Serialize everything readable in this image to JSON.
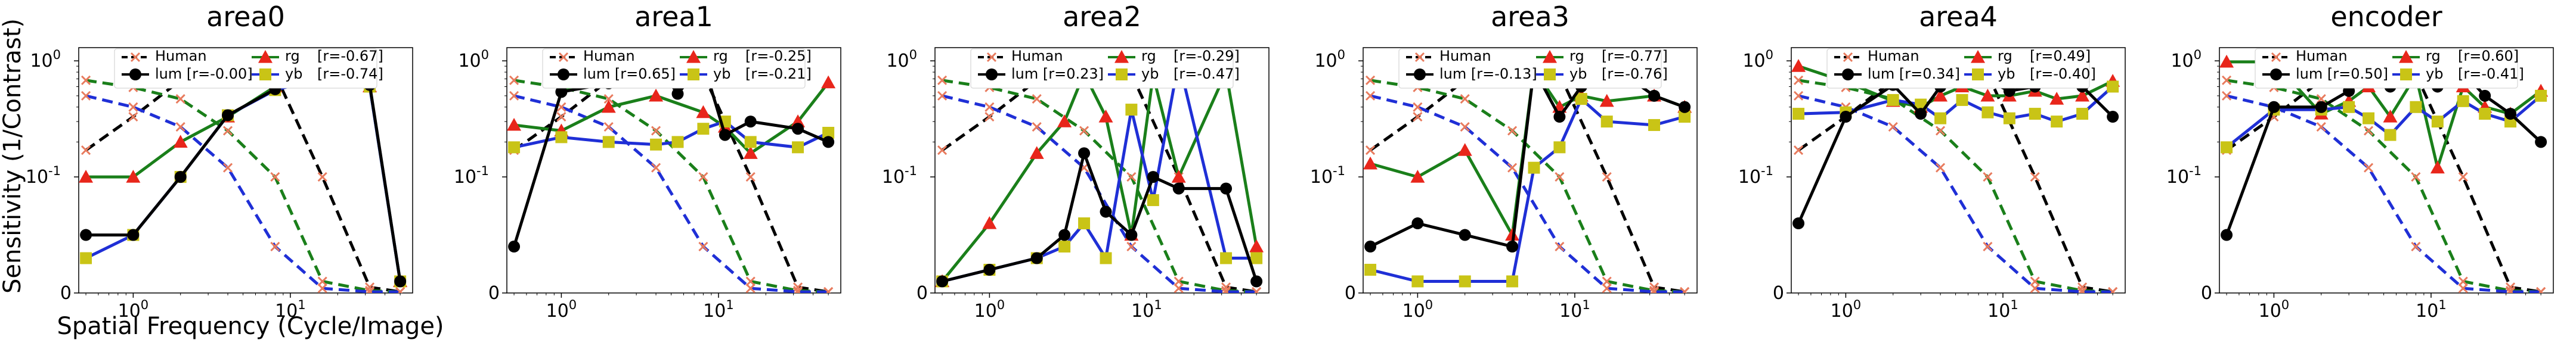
{
  "figure": {
    "ylabel": "Sensitivity (1/Contrast)",
    "xlabel": "Spatial Frequency (Cycle/Image)",
    "legend_labels": {
      "human": "Human",
      "lum": "lum",
      "rg": "rg",
      "yb": "yb"
    }
  },
  "colors": {
    "human": "#000000",
    "lum": "#000000",
    "rg": "#1a7f1a",
    "yb": "#1f2fd6",
    "rg_marker": "#e8261b",
    "yb_marker": "#c9c416",
    "human_rg": "#1a7f1a",
    "human_yb": "#1f2fd6",
    "human_cross": "#e87b5e"
  },
  "chart_data": [
    {
      "type": "line",
      "title": "area0",
      "xscale": "log",
      "yscale": "symlog",
      "xlim": [
        0.45,
        60
      ],
      "ylim": [
        0,
        1.3
      ],
      "xticks": [
        "10^0",
        "10^1"
      ],
      "yticks": [
        "0",
        "10^-1",
        "10^0"
      ],
      "legend": {
        "placement": "top",
        "lum_r": "[r=-0.00]",
        "rg_r": "[r=-0.67]",
        "yb_r": "[r=-0.74]"
      },
      "human": {
        "x": [
          0.5,
          1,
          2,
          4,
          8,
          16,
          32,
          50
        ],
        "lum": [
          0.17,
          0.33,
          0.68,
          0.98,
          0.77,
          0.1,
          0.005,
          0.001
        ],
        "rg": [
          0.68,
          0.59,
          0.47,
          0.25,
          0.1,
          0.01,
          0.002,
          0.001
        ],
        "yb": [
          0.5,
          0.4,
          0.27,
          0.12,
          0.04,
          0.004,
          0.001,
          0.001
        ]
      },
      "lum": {
        "x": [
          0.5,
          1,
          2,
          4,
          8,
          16,
          32,
          50
        ],
        "values": [
          0.05,
          0.05,
          0.1,
          0.34,
          0.57,
          1.0,
          0.62,
          0.01
        ]
      },
      "rg": {
        "x": [
          0.5,
          1,
          2,
          4,
          8,
          16,
          32,
          50
        ],
        "values": [
          0.1,
          0.1,
          0.2,
          0.33,
          0.6,
          0.65,
          0.6,
          0.01
        ]
      },
      "yb": {
        "x": [
          0.5,
          1,
          2,
          4,
          8,
          16,
          32,
          50
        ],
        "values": [
          0.03,
          0.05,
          0.1,
          0.34,
          0.56,
          0.72,
          0.6,
          0.01
        ]
      }
    },
    {
      "type": "line",
      "title": "area1",
      "xscale": "log",
      "yscale": "symlog",
      "xlim": [
        0.45,
        60
      ],
      "ylim": [
        0,
        1.3
      ],
      "xticks": [
        "10^0",
        "10^1"
      ],
      "yticks": [
        "0",
        "10^-1",
        "10^0"
      ],
      "legend": {
        "placement": "top",
        "lum_r": "[r=0.65]",
        "rg_r": "[r=-0.25]",
        "yb_r": "[r=-0.21]"
      },
      "human": {
        "x": [
          0.5,
          1,
          2,
          4,
          8,
          16,
          32,
          50
        ],
        "lum": [
          0.17,
          0.33,
          0.68,
          0.98,
          0.77,
          0.1,
          0.005,
          0.001
        ],
        "rg": [
          0.68,
          0.59,
          0.47,
          0.25,
          0.1,
          0.01,
          0.002,
          0.001
        ],
        "yb": [
          0.5,
          0.4,
          0.27,
          0.12,
          0.04,
          0.004,
          0.001,
          0.001
        ]
      },
      "lum": {
        "x": [
          0.5,
          1,
          2,
          3,
          4,
          5.5,
          8,
          11,
          16,
          32,
          50
        ],
        "values": [
          0.04,
          0.54,
          0.64,
          0.77,
          0.98,
          0.52,
          0.97,
          0.23,
          0.3,
          0.26,
          0.2
        ]
      },
      "rg": {
        "x": [
          0.5,
          1,
          2,
          4,
          8,
          11,
          16,
          32,
          50
        ],
        "values": [
          0.28,
          0.25,
          0.4,
          0.5,
          0.36,
          0.27,
          0.16,
          0.3,
          0.65
        ]
      },
      "yb": {
        "x": [
          0.5,
          1,
          2,
          4,
          5.5,
          8,
          11,
          16,
          32,
          50
        ],
        "values": [
          0.18,
          0.22,
          0.2,
          0.19,
          0.2,
          0.26,
          0.3,
          0.2,
          0.18,
          0.24
        ]
      }
    },
    {
      "type": "line",
      "title": "area2",
      "xscale": "log",
      "yscale": "symlog",
      "xlim": [
        0.45,
        60
      ],
      "ylim": [
        0,
        1.3
      ],
      "xticks": [
        "10^0",
        "10^1"
      ],
      "yticks": [
        "0",
        "10^-1",
        "10^0"
      ],
      "legend": {
        "placement": "top",
        "lum_r": "[r=0.23]",
        "rg_r": "[r=-0.29]",
        "yb_r": "[r=-0.47]"
      },
      "human": {
        "x": [
          0.5,
          1,
          2,
          4,
          8,
          16,
          32,
          50
        ],
        "lum": [
          0.17,
          0.33,
          0.68,
          0.98,
          0.77,
          0.1,
          0.005,
          0.001
        ],
        "rg": [
          0.68,
          0.59,
          0.47,
          0.25,
          0.1,
          0.01,
          0.002,
          0.001
        ],
        "yb": [
          0.5,
          0.4,
          0.27,
          0.12,
          0.04,
          0.004,
          0.001,
          0.001
        ]
      },
      "lum": {
        "x": [
          0.5,
          1,
          2,
          3,
          4,
          5.5,
          8,
          11,
          16,
          32,
          50
        ],
        "values": [
          0.01,
          0.02,
          0.03,
          0.05,
          0.16,
          0.07,
          0.05,
          0.1,
          0.09,
          0.09,
          0.01
        ]
      },
      "rg": {
        "x": [
          0.5,
          1,
          2,
          3,
          4,
          5.5,
          8,
          11,
          16,
          32,
          50
        ],
        "values": [
          0.01,
          0.06,
          0.16,
          0.3,
          0.78,
          0.33,
          0.05,
          0.75,
          0.1,
          0.8,
          0.04
        ]
      },
      "yb": {
        "x": [
          0.5,
          1,
          2,
          3,
          4,
          5.5,
          8,
          11,
          16,
          32,
          50
        ],
        "values": [
          0.01,
          0.02,
          0.03,
          0.04,
          0.06,
          0.03,
          0.38,
          0.08,
          1.0,
          0.03,
          0.03
        ]
      }
    },
    {
      "type": "line",
      "title": "area3",
      "xscale": "log",
      "yscale": "symlog",
      "xlim": [
        0.45,
        60
      ],
      "ylim": [
        0,
        1.3
      ],
      "xticks": [
        "10^0",
        "10^1"
      ],
      "yticks": [
        "0",
        "10^-1",
        "10^0"
      ],
      "legend": {
        "placement": "top",
        "lum_r": "[r=-0.13]",
        "rg_r": "[r=-0.77]",
        "yb_r": "[r=-0.76]"
      },
      "human": {
        "x": [
          0.5,
          1,
          2,
          4,
          8,
          16,
          32,
          50
        ],
        "lum": [
          0.17,
          0.33,
          0.68,
          0.98,
          0.77,
          0.1,
          0.005,
          0.001
        ],
        "rg": [
          0.68,
          0.59,
          0.47,
          0.25,
          0.1,
          0.01,
          0.002,
          0.001
        ],
        "yb": [
          0.5,
          0.4,
          0.27,
          0.12,
          0.04,
          0.004,
          0.001,
          0.001
        ]
      },
      "lum": {
        "x": [
          0.5,
          1,
          2,
          4,
          5.5,
          8,
          11,
          16,
          32,
          50
        ],
        "values": [
          0.04,
          0.06,
          0.05,
          0.04,
          0.85,
          0.33,
          0.6,
          0.98,
          0.5,
          0.4
        ]
      },
      "rg": {
        "x": [
          0.5,
          1,
          2,
          4,
          5.5,
          8,
          11,
          16,
          32,
          50
        ],
        "values": [
          0.13,
          0.1,
          0.17,
          0.05,
          0.85,
          0.4,
          0.5,
          0.45,
          0.5,
          0.4
        ]
      },
      "yb": {
        "x": [
          0.5,
          1,
          2,
          4,
          5.5,
          8,
          11,
          16,
          32,
          50
        ],
        "values": [
          0.02,
          0.01,
          0.01,
          0.01,
          0.12,
          0.18,
          0.47,
          0.3,
          0.28,
          0.33
        ]
      }
    },
    {
      "type": "line",
      "title": "area4",
      "xscale": "log",
      "yscale": "symlog",
      "xlim": [
        0.45,
        60
      ],
      "ylim": [
        0,
        1.3
      ],
      "xticks": [
        "10^0",
        "10^1"
      ],
      "yticks": [
        "0",
        "10^-1",
        "10^0"
      ],
      "legend": {
        "placement": "top",
        "lum_r": "[r=0.34]",
        "rg_r": "[r=0.49]",
        "yb_r": "[r=-0.40]"
      },
      "human": {
        "x": [
          0.5,
          1,
          2,
          4,
          8,
          16,
          32,
          50
        ],
        "lum": [
          0.17,
          0.33,
          0.68,
          0.98,
          0.77,
          0.1,
          0.005,
          0.001
        ],
        "rg": [
          0.68,
          0.59,
          0.47,
          0.25,
          0.1,
          0.01,
          0.002,
          0.001
        ],
        "yb": [
          0.5,
          0.4,
          0.27,
          0.12,
          0.04,
          0.004,
          0.001,
          0.001
        ]
      },
      "lum": {
        "x": [
          0.5,
          1,
          2,
          3,
          4,
          5.5,
          8,
          11,
          16,
          22,
          32,
          50
        ],
        "values": [
          0.06,
          0.33,
          0.62,
          0.35,
          0.6,
          0.95,
          0.68,
          0.55,
          0.6,
          0.86,
          0.6,
          0.33
        ]
      },
      "rg": {
        "x": [
          0.5,
          1,
          2,
          3,
          4,
          5.5,
          8,
          11,
          16,
          22,
          32,
          50
        ],
        "values": [
          0.9,
          0.66,
          0.45,
          0.4,
          0.5,
          0.6,
          0.5,
          0.5,
          0.55,
          0.47,
          0.5,
          0.67
        ]
      },
      "yb": {
        "x": [
          0.5,
          1,
          2,
          3,
          4,
          5.5,
          8,
          11,
          16,
          22,
          32,
          50
        ],
        "values": [
          0.35,
          0.36,
          0.46,
          0.42,
          0.32,
          0.46,
          0.36,
          0.32,
          0.35,
          0.3,
          0.35,
          0.6
        ]
      }
    },
    {
      "type": "line",
      "title": "encoder",
      "xscale": "log",
      "yscale": "symlog",
      "xlim": [
        0.45,
        60
      ],
      "ylim": [
        0,
        1.3
      ],
      "xticks": [
        "10^0",
        "10^1"
      ],
      "yticks": [
        "0",
        "10^-1",
        "10^0"
      ],
      "legend": {
        "placement": "top",
        "lum_r": "[r=0.50]",
        "rg_r": "[r=0.60]",
        "yb_r": "[r=-0.41]"
      },
      "human": {
        "x": [
          0.5,
          1,
          2,
          4,
          8,
          16,
          32,
          50
        ],
        "lum": [
          0.17,
          0.33,
          0.68,
          0.98,
          0.77,
          0.1,
          0.005,
          0.001
        ],
        "rg": [
          0.68,
          0.59,
          0.47,
          0.25,
          0.1,
          0.01,
          0.002,
          0.001
        ],
        "yb": [
          0.5,
          0.4,
          0.27,
          0.12,
          0.04,
          0.004,
          0.001,
          0.001
        ]
      },
      "lum": {
        "x": [
          0.5,
          1,
          2,
          3,
          4,
          5.5,
          8,
          11,
          16,
          22,
          32,
          50
        ],
        "values": [
          0.05,
          0.4,
          0.4,
          0.55,
          0.8,
          0.6,
          1.0,
          0.6,
          0.8,
          0.5,
          0.35,
          0.2
        ]
      },
      "rg": {
        "x": [
          0.5,
          1,
          2,
          3,
          4,
          5.5,
          8,
          11,
          16,
          22,
          32,
          50
        ],
        "values": [
          0.98,
          0.98,
          0.35,
          0.45,
          0.6,
          0.33,
          0.75,
          0.12,
          0.6,
          0.4,
          0.35,
          0.55
        ]
      },
      "yb": {
        "x": [
          0.5,
          1,
          2,
          3,
          4,
          5.5,
          8,
          11,
          16,
          22,
          32,
          50
        ],
        "values": [
          0.18,
          0.38,
          0.38,
          0.4,
          0.32,
          0.23,
          0.4,
          0.3,
          0.45,
          0.35,
          0.3,
          0.5
        ]
      }
    }
  ]
}
